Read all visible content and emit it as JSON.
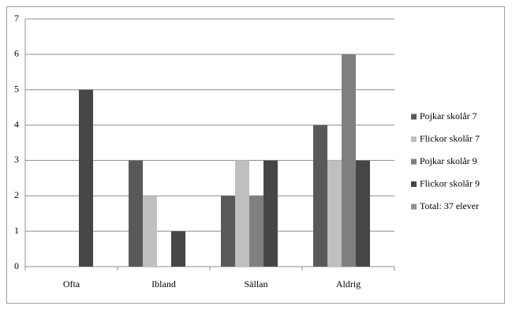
{
  "chart_data": {
    "type": "bar",
    "categories": [
      "Ofta",
      "Ibland",
      "Sällan",
      "Aldrig"
    ],
    "series": [
      {
        "name": "Pojkar skolår 7",
        "color": "#595959",
        "values": [
          0,
          3,
          2,
          4
        ]
      },
      {
        "name": "Flickor skolår 7",
        "color": "#bfbfbf",
        "values": [
          0,
          2,
          3,
          3
        ]
      },
      {
        "name": "Pojkar skolår 9",
        "color": "#7f7f7f",
        "values": [
          0,
          0,
          2,
          6
        ]
      },
      {
        "name": "Flickor skolår 9",
        "color": "#464646",
        "values": [
          5,
          1,
          3,
          3
        ]
      },
      {
        "name": "Total: 37 elever",
        "color": "#8f8f8f",
        "values": [
          0,
          0,
          0,
          0
        ]
      }
    ],
    "ylim": [
      0,
      7
    ],
    "yticks": [
      0,
      1,
      2,
      3,
      4,
      5,
      6,
      7
    ],
    "grid": true,
    "legend": "right"
  }
}
